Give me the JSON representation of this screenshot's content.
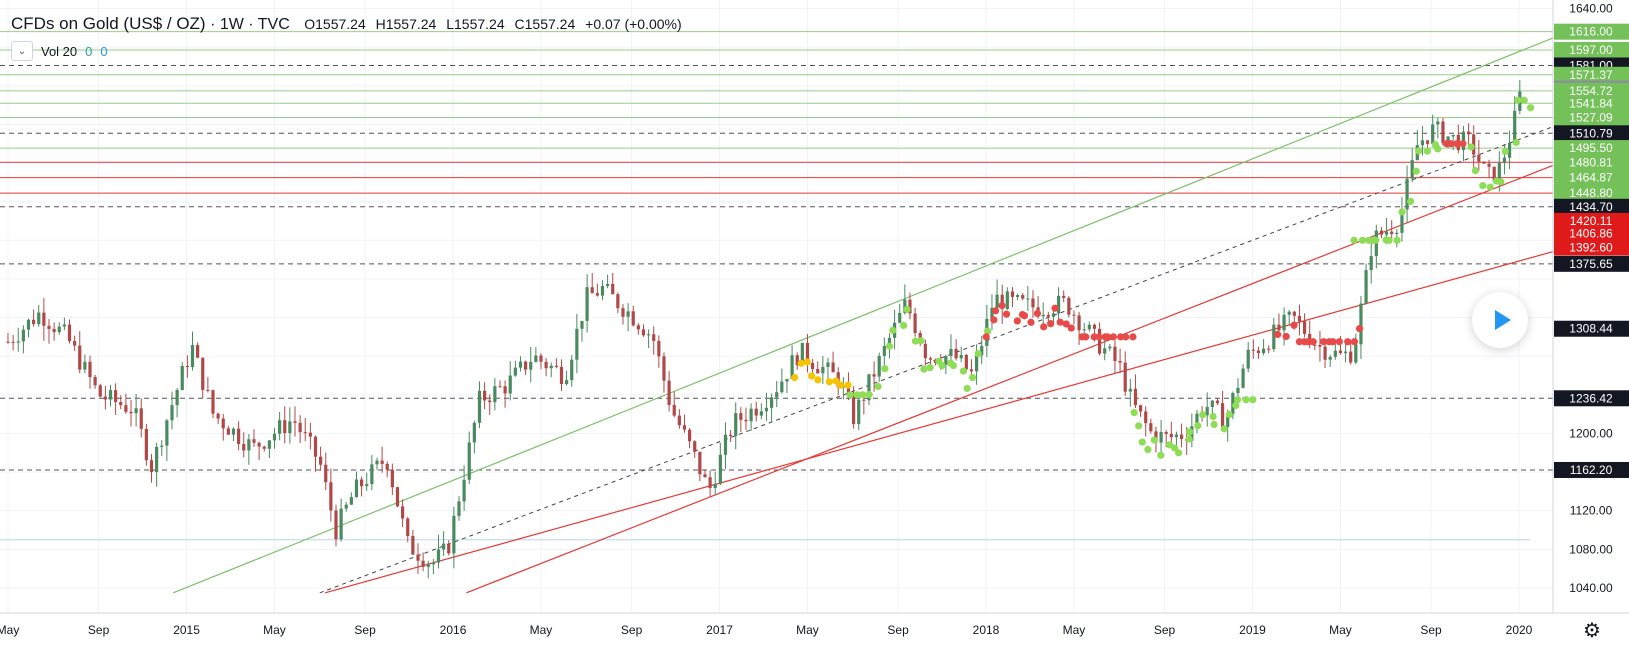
{
  "legend": {
    "symbol": "CFDs on Gold (US$ / OZ)",
    "interval": "1W",
    "source": "TVC",
    "open": "O1557.24",
    "high": "H1557.24",
    "low": "L1557.24",
    "close": "C1557.24",
    "change": "+0.07 (+0.00%)"
  },
  "volume_indicator": {
    "label": "Vol 20",
    "value1": "0",
    "value2": "0",
    "toggle_icon": "chevron-down-icon"
  },
  "controls": {
    "play_icon": "play-icon",
    "settings_icon": "gear-icon"
  },
  "colors": {
    "up": "#4a8a60",
    "down": "#b04848",
    "green_line": "#7cc26a",
    "red_line": "#e53935",
    "dots_green": "#8fdc56",
    "dots_red": "#e84a4a",
    "dots_yellow": "#f5c400",
    "price_black": "#131722",
    "price_red": "#e01a1a",
    "price_green": "#74c15a",
    "price_gray": "#8a9196"
  },
  "chart_data": {
    "type": "candlestick",
    "y_axis_labels": [
      "1640.00",
      "1200.00",
      "1120.00",
      "1080.00",
      "1040.00"
    ],
    "price_tags": [
      {
        "label": "1616.00",
        "value": 1616.0,
        "style": "green"
      },
      {
        "label": "1597.00",
        "value": 1597.0,
        "style": "green"
      },
      {
        "label": "1581.00",
        "value": 1581.0,
        "style": "black"
      },
      {
        "label": "1571.37",
        "value": 1571.37,
        "style": "green"
      },
      {
        "label": "1557.24",
        "value": 1557.24,
        "style": "gray"
      },
      {
        "label": "1554.72",
        "value": 1554.72,
        "style": "green"
      },
      {
        "label": "1541.84",
        "value": 1541.84,
        "style": "green"
      },
      {
        "label": "1527.09",
        "value": 1527.09,
        "style": "green"
      },
      {
        "label": "1510.79",
        "value": 1510.79,
        "style": "black"
      },
      {
        "label": "1495.50",
        "value": 1495.5,
        "style": "green"
      },
      {
        "label": "1480.81",
        "value": 1480.81,
        "style": "green"
      },
      {
        "label": "1464.87",
        "value": 1464.87,
        "style": "green"
      },
      {
        "label": "1448.80",
        "value": 1448.8,
        "style": "green"
      },
      {
        "label": "1434.70",
        "value": 1434.7,
        "style": "black"
      },
      {
        "label": "1420.11",
        "value": 1420.11,
        "style": "red"
      },
      {
        "label": "1406.86",
        "value": 1406.86,
        "style": "red"
      },
      {
        "label": "1392.60",
        "value": 1392.6,
        "style": "red"
      },
      {
        "label": "1375.65",
        "value": 1375.65,
        "style": "black"
      },
      {
        "label": "1308.44",
        "value": 1308.44,
        "style": "black"
      },
      {
        "label": "1236.42",
        "value": 1236.42,
        "style": "black"
      },
      {
        "label": "1162.20",
        "value": 1162.2,
        "style": "black"
      }
    ],
    "x_labels": [
      {
        "label": "May",
        "t": 2014.33
      },
      {
        "label": "Sep",
        "t": 2014.67
      },
      {
        "label": "2015",
        "t": 2015.0
      },
      {
        "label": "May",
        "t": 2015.33
      },
      {
        "label": "Sep",
        "t": 2015.67
      },
      {
        "label": "2016",
        "t": 2016.0
      },
      {
        "label": "May",
        "t": 2016.33
      },
      {
        "label": "Sep",
        "t": 2016.67
      },
      {
        "label": "2017",
        "t": 2017.0
      },
      {
        "label": "May",
        "t": 2017.33
      },
      {
        "label": "Sep",
        "t": 2017.67
      },
      {
        "label": "2018",
        "t": 2018.0
      },
      {
        "label": "May",
        "t": 2018.33
      },
      {
        "label": "Sep",
        "t": 2018.67
      },
      {
        "label": "2019",
        "t": 2019.0
      },
      {
        "label": "May",
        "t": 2019.33
      },
      {
        "label": "Sep",
        "t": 2019.67
      },
      {
        "label": "2020",
        "t": 2020.0
      }
    ],
    "series_path": [
      [
        2014.33,
        1295
      ],
      [
        2014.45,
        1325
      ],
      [
        2014.55,
        1300
      ],
      [
        2014.67,
        1240
      ],
      [
        2014.8,
        1225
      ],
      [
        2014.87,
        1165
      ],
      [
        2014.92,
        1210
      ],
      [
        2015.02,
        1290
      ],
      [
        2015.1,
        1220
      ],
      [
        2015.25,
        1185
      ],
      [
        2015.4,
        1215
      ],
      [
        2015.5,
        1170
      ],
      [
        2015.56,
        1100
      ],
      [
        2015.63,
        1140
      ],
      [
        2015.75,
        1175
      ],
      [
        2015.83,
        1085
      ],
      [
        2015.92,
        1065
      ],
      [
        2015.98,
        1080
      ],
      [
        2016.1,
        1235
      ],
      [
        2016.2,
        1250
      ],
      [
        2016.3,
        1280
      ],
      [
        2016.42,
        1260
      ],
      [
        2016.5,
        1340
      ],
      [
        2016.56,
        1350
      ],
      [
        2016.68,
        1320
      ],
      [
        2016.75,
        1300
      ],
      [
        2016.82,
        1225
      ],
      [
        2016.9,
        1180
      ],
      [
        2016.96,
        1140
      ],
      [
        2017.05,
        1210
      ],
      [
        2017.15,
        1230
      ],
      [
        2017.22,
        1250
      ],
      [
        2017.3,
        1285
      ],
      [
        2017.4,
        1265
      ],
      [
        2017.45,
        1255
      ],
      [
        2017.5,
        1215
      ],
      [
        2017.6,
        1275
      ],
      [
        2017.7,
        1335
      ],
      [
        2017.78,
        1280
      ],
      [
        2017.88,
        1280
      ],
      [
        2017.95,
        1260
      ],
      [
        2018.03,
        1340
      ],
      [
        2018.1,
        1335
      ],
      [
        2018.2,
        1330
      ],
      [
        2018.3,
        1335
      ],
      [
        2018.4,
        1300
      ],
      [
        2018.5,
        1270
      ],
      [
        2018.55,
        1230
      ],
      [
        2018.62,
        1200
      ],
      [
        2018.68,
        1195
      ],
      [
        2018.75,
        1200
      ],
      [
        2018.82,
        1230
      ],
      [
        2018.9,
        1215
      ],
      [
        2018.98,
        1280
      ],
      [
        2019.05,
        1295
      ],
      [
        2019.15,
        1320
      ],
      [
        2019.25,
        1290
      ],
      [
        2019.33,
        1280
      ],
      [
        2019.38,
        1285
      ],
      [
        2019.45,
        1400
      ],
      [
        2019.55,
        1420
      ],
      [
        2019.62,
        1500
      ],
      [
        2019.68,
        1515
      ],
      [
        2019.75,
        1505
      ],
      [
        2019.82,
        1500
      ],
      [
        2019.88,
        1465
      ],
      [
        2019.93,
        1475
      ],
      [
        2019.98,
        1520
      ],
      [
        2020.01,
        1557.24
      ]
    ],
    "overlay_dots": [
      {
        "color": "yellow",
        "t_range": [
          2017.28,
          2017.48
        ],
        "price_range": [
          1250,
          1275
        ]
      },
      {
        "color": "green",
        "t_range": [
          2017.5,
          2018.0
        ],
        "price_range": [
          1240,
          1330
        ]
      },
      {
        "color": "red",
        "t_range": [
          2018.0,
          2018.55
        ],
        "price_range": [
          1300,
          1345
        ]
      },
      {
        "color": "green",
        "t_range": [
          2018.55,
          2019.0
        ],
        "price_range": [
          1175,
          1235
        ]
      },
      {
        "color": "red",
        "t_range": [
          2019.1,
          2019.4
        ],
        "price_range": [
          1295,
          1335
        ]
      },
      {
        "color": "green",
        "t_range": [
          2019.38,
          2019.7
        ],
        "price_range": [
          1400,
          1510
        ]
      },
      {
        "color": "red",
        "t_range": [
          2019.72,
          2019.8
        ],
        "price_range": [
          1500,
          1515
        ]
      },
      {
        "color": "green",
        "t_range": [
          2019.82,
          2020.05
        ],
        "price_range": [
          1455,
          1545
        ]
      }
    ],
    "trend_lines": [
      {
        "color": "green",
        "from": [
          2014.95,
          1035
        ],
        "to": [
          2020.15,
          1612
        ]
      },
      {
        "color": "black_dashed",
        "from": [
          2015.5,
          1035
        ],
        "to": [
          2020.15,
          1520
        ]
      },
      {
        "color": "red",
        "from": [
          2015.52,
          1035
        ],
        "to": [
          2020.15,
          1390
        ]
      },
      {
        "color": "red",
        "from": [
          2016.05,
          1035
        ],
        "to": [
          2020.15,
          1480
        ]
      }
    ],
    "horizontal_lines": [
      {
        "value": 1616,
        "style": "green"
      },
      {
        "value": 1597,
        "style": "green"
      },
      {
        "value": 1581,
        "style": "dashed"
      },
      {
        "value": 1571.37,
        "style": "green"
      },
      {
        "value": 1554.72,
        "style": "green"
      },
      {
        "value": 1541.84,
        "style": "green"
      },
      {
        "value": 1527.09,
        "style": "green"
      },
      {
        "value": 1510.79,
        "style": "dashed"
      },
      {
        "value": 1495.5,
        "style": "green"
      },
      {
        "value": 1480.81,
        "style": "red"
      },
      {
        "value": 1464.87,
        "style": "red"
      },
      {
        "value": 1448.8,
        "style": "red"
      },
      {
        "value": 1434.7,
        "style": "dashed"
      },
      {
        "value": 1375.65,
        "style": "dashed"
      },
      {
        "value": 1236.42,
        "style": "dashed"
      },
      {
        "value": 1162.2,
        "style": "dashed"
      }
    ]
  }
}
